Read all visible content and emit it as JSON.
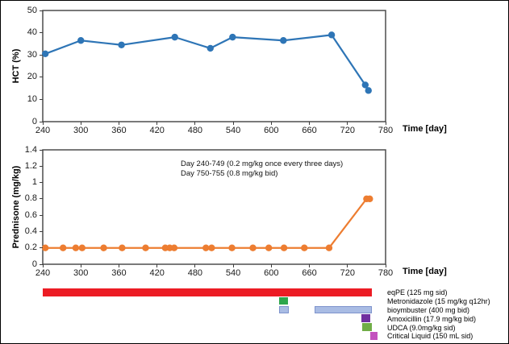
{
  "figure_title": "",
  "axis": {
    "x_title": "Time [day]"
  },
  "chart_data": [
    {
      "id": "hct",
      "type": "line",
      "title": "",
      "xlabel": "Time [day]",
      "ylabel": "HCT (%)",
      "xlim": [
        240,
        780
      ],
      "ylim": [
        0,
        50
      ],
      "xticks": [
        240,
        300,
        360,
        420,
        480,
        540,
        600,
        660,
        720,
        780
      ],
      "yticks": [
        0,
        10,
        20,
        30,
        40,
        50
      ],
      "ytick_labels": [
        "0",
        "10",
        "20",
        "30",
        "40",
        "50"
      ],
      "grid": false,
      "legend": "none",
      "color": "#2E75B6",
      "series": [
        {
          "name": "HCT",
          "x": [
            244,
            300,
            364,
            448,
            504,
            539,
            619,
            695,
            748,
            753
          ],
          "y": [
            30.5,
            36.5,
            34.5,
            38,
            33,
            38,
            36.5,
            39,
            16.5,
            14
          ]
        }
      ]
    },
    {
      "id": "prednisone",
      "type": "line",
      "title": "",
      "xlabel": "Time [day]",
      "ylabel": "Prednisone (mg/kg)",
      "xlim": [
        240,
        780
      ],
      "ylim": [
        0,
        1.4
      ],
      "xticks": [
        240,
        300,
        360,
        420,
        480,
        540,
        600,
        660,
        720,
        780
      ],
      "yticks": [
        0,
        0.2,
        0.4,
        0.6,
        0.8,
        1,
        1.2,
        1.4
      ],
      "ytick_labels": [
        "0",
        "0.2",
        "0.4",
        "0.6",
        "0.8",
        "1",
        "1.2",
        "1.4"
      ],
      "grid": false,
      "legend": "none",
      "color": "#ED7D31",
      "annotation": [
        "Day 240-749 (0.2 mg/kg  once every three days)",
        "Day 750-755 (0.8 mg/kg  bid)"
      ],
      "series": [
        {
          "name": "Prednisone",
          "x": [
            244,
            272,
            292,
            302,
            336,
            365,
            402,
            433,
            440,
            447,
            497,
            506,
            538,
            571,
            596,
            620,
            652,
            691,
            750,
            755
          ],
          "y": [
            0.2,
            0.2,
            0.2,
            0.2,
            0.2,
            0.2,
            0.2,
            0.2,
            0.2,
            0.2,
            0.2,
            0.2,
            0.2,
            0.2,
            0.2,
            0.2,
            0.2,
            0.2,
            0.8,
            0.8
          ]
        }
      ]
    },
    {
      "id": "medications",
      "type": "gantt",
      "xlim": [
        240,
        780
      ],
      "rows": [
        {
          "label": "eqPE (125 mg sid)",
          "color": "#EC1C24",
          "spans": [
            [
              240,
              758
            ]
          ]
        },
        {
          "label": "Metronidazole  (15 mg/kg  q12hr)",
          "color": "#2EA64C",
          "spans": [
            [
              612,
              626
            ]
          ]
        },
        {
          "label": "bioymbuster  (400 mg bid)",
          "color": "#A9BCE4",
          "border": "#7E93CC",
          "spans": [
            [
              612,
              628
            ],
            [
              668,
              758
            ]
          ]
        },
        {
          "label": "Amoxicillin  (17.9 mg/kg  bid)",
          "color": "#7030A0",
          "spans": [
            [
              742,
              756
            ]
          ]
        },
        {
          "label": "UDCA (9.0mg/kg  sid)",
          "color": "#70AD47",
          "spans": [
            [
              743,
              759
            ]
          ]
        },
        {
          "label": "Critical Liquid (150 mL sid)",
          "color": "#C353BE",
          "spans": [
            [
              756,
              767
            ]
          ]
        }
      ]
    }
  ]
}
